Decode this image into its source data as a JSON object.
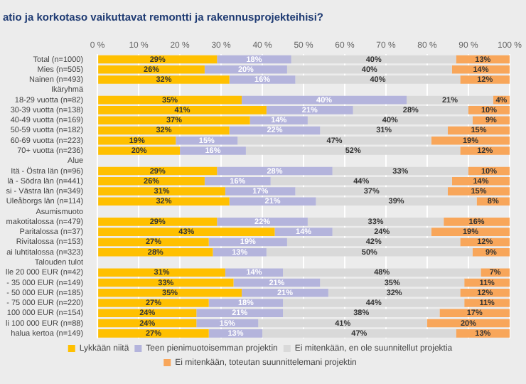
{
  "chart_data": {
    "type": "bar",
    "orientation": "horizontal",
    "stacked": true,
    "title": "atio ja korkotaso vaikuttavat remontti ja rakennusprojekteihisi?",
    "categories": [
      "Total (n=1000)",
      "Mies (n=505)",
      "Nainen (n=493)",
      "Ikäryhmä",
      "18-29 vuotta (n=82)",
      "30-39 vuotta (n=138)",
      "40-49 vuotta (n=169)",
      "50-59 vuotta (n=182)",
      "60-69 vuotta (n=223)",
      "70+ vuotta (n=236)",
      "Alue",
      "Itä - Östra län (n=96)",
      "lä - Södra län (n=441)",
      "si - Västra län (n=349)",
      "Uleåborgs län (n=114)",
      "Asumismuoto",
      "makotitalossa (n=479)",
      "Paritalossa (n=37)",
      "Rivitalossa (n=153)",
      "ai luhtitalossa (n=323)",
      "Talouden tulot",
      "lle 20 000 EUR (n=42)",
      "- 35 000 EUR (n=149)",
      "- 50 000 EUR (n=185)",
      "- 75 000 EUR (n=220)",
      "100 000 EUR (n=154)",
      "li 100 000 EUR (n=88)",
      "halua kertoa (n=149)"
    ],
    "series": [
      {
        "name": "Lykkään niitä",
        "color": "#ffc000",
        "values": [
          29,
          26,
          32,
          null,
          35,
          41,
          37,
          32,
          19,
          20,
          null,
          29,
          26,
          31,
          32,
          null,
          29,
          43,
          27,
          28,
          null,
          31,
          33,
          35,
          27,
          24,
          24,
          27
        ],
        "value_labels": [
          "29%",
          "26%",
          "32%",
          null,
          "35%",
          "41%",
          "37%",
          "32%",
          "19%",
          "20%",
          null,
          "29%",
          "26%",
          "31%",
          "32%",
          null,
          "29%",
          "43%",
          "27%",
          "28%",
          null,
          "31%",
          "33%",
          "35%",
          "27%",
          "24%",
          "24%",
          "27%"
        ]
      },
      {
        "name": "Teen pienimuotoisemman projektin",
        "color": "#b4b4dc",
        "values": [
          18,
          20,
          16,
          null,
          40,
          21,
          14,
          22,
          15,
          16,
          null,
          28,
          16,
          17,
          21,
          null,
          22,
          14,
          19,
          13,
          null,
          14,
          21,
          21,
          18,
          21,
          15,
          13
        ],
        "value_labels": [
          "18%",
          "20%",
          "16%",
          null,
          "40%",
          "21%",
          "14%",
          "22%",
          "15%",
          "16%",
          null,
          "28%",
          "16%",
          "17%",
          "21%",
          null,
          "22%",
          "14%",
          "19%",
          "13%",
          null,
          "14%",
          "21%",
          "21%",
          "18%",
          "21%",
          "15%",
          "13%"
        ]
      },
      {
        "name": "Ei mitenkään, en ole suunnitellut projektia",
        "color": "#d9d9d9",
        "values": [
          40,
          40,
          40,
          null,
          21,
          28,
          40,
          31,
          47,
          52,
          null,
          33,
          44,
          37,
          39,
          null,
          33,
          24,
          42,
          50,
          null,
          48,
          35,
          32,
          44,
          38,
          41,
          47
        ],
        "value_labels": [
          "40%",
          "40%",
          "40%",
          null,
          "21%",
          "28%",
          "40%",
          "31%",
          "47%",
          "52%",
          null,
          "33%",
          "44%",
          "37%",
          "39%",
          null,
          "33%",
          "24%",
          "42%",
          "50%",
          null,
          "48%",
          "35%",
          "32%",
          "44%",
          "38%",
          "41%",
          "47%"
        ]
      },
      {
        "name": "Ei mitenkään, toteutan suunnittelemani projektin",
        "color": "#f8a65a",
        "values": [
          13,
          14,
          12,
          null,
          4,
          10,
          9,
          15,
          19,
          12,
          null,
          10,
          14,
          15,
          8,
          null,
          16,
          19,
          12,
          9,
          null,
          7,
          11,
          12,
          11,
          17,
          20,
          13
        ],
        "value_labels": [
          "13%",
          "14%",
          "12%",
          null,
          "4%",
          "10%",
          "9%",
          "15%",
          "19%",
          "12%",
          null,
          "10%",
          "14%",
          "15%",
          "8%",
          null,
          "16%",
          "19%",
          "12%",
          "9%",
          null,
          "7%",
          "11%",
          "12%",
          "11%",
          "17%",
          "20%",
          "13%"
        ]
      }
    ],
    "xlim": [
      0,
      100
    ],
    "xticks": [
      {
        "value": 0,
        "label": "0 %"
      },
      {
        "value": 10,
        "label": "10 %"
      },
      {
        "value": 20,
        "label": "20 %"
      },
      {
        "value": 30,
        "label": "30 %"
      },
      {
        "value": 40,
        "label": "40 %"
      },
      {
        "value": 50,
        "label": "50 %"
      },
      {
        "value": 60,
        "label": "60 %"
      },
      {
        "value": 70,
        "label": "70 %"
      },
      {
        "value": 80,
        "label": "80 %"
      },
      {
        "value": 90,
        "label": "90 %"
      },
      {
        "value": 100,
        "label": "100 %"
      }
    ],
    "grid": "x",
    "legend": "bottom"
  }
}
